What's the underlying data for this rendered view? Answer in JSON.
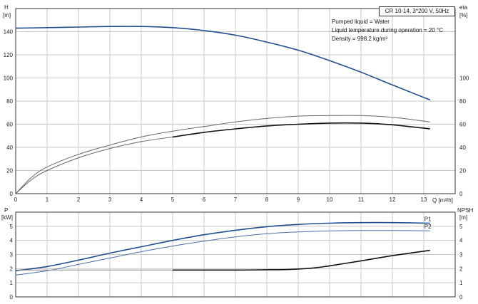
{
  "title": "CR 10-14, 3*200 V, 50Hz",
  "info_lines": [
    "Pumped liquid = Water",
    "Liquid temperature during operation = 20 °C",
    "Density = 998.2 kg/m³"
  ],
  "chart_data": [
    {
      "type": "line",
      "panel": "top",
      "xlabel": "Q [m³/h]",
      "ylabel_left": "H",
      "ylabel_left_unit": "[m]",
      "ylabel_right": "eta",
      "ylabel_right_unit": "[%]",
      "xlim": [
        0,
        14
      ],
      "ylim": [
        0,
        160
      ],
      "x_ticks": [
        0,
        1,
        2,
        3,
        4,
        5,
        6,
        7,
        8,
        9,
        10,
        11,
        12,
        13
      ],
      "y_ticks_left": [
        0,
        20,
        40,
        60,
        80,
        100,
        120,
        140
      ],
      "y_ticks_right": [
        0,
        20,
        40,
        60,
        80,
        100
      ],
      "grid": true,
      "series": [
        {
          "name": "",
          "color": "#1f4e8f",
          "x": [
            0,
            1,
            2,
            3,
            4,
            5,
            6,
            7,
            8,
            9,
            10,
            11,
            12,
            13.2
          ],
          "y": [
            143,
            143.5,
            144,
            144.5,
            144.5,
            143.5,
            141,
            137,
            131,
            124,
            115,
            105,
            94,
            81
          ]
        },
        {
          "name": "",
          "color": "#666666",
          "x": [
            0,
            0.5,
            1,
            2,
            3,
            4,
            5,
            6,
            7,
            8,
            9,
            10,
            11,
            12,
            13.2
          ],
          "y": [
            0,
            14,
            23,
            34,
            42,
            49,
            54,
            58,
            62,
            65,
            67,
            67.5,
            67.5,
            66,
            62
          ]
        },
        {
          "name": "",
          "color": "#666666",
          "x": [
            0,
            0.5,
            1,
            2,
            3,
            4,
            5
          ],
          "y": [
            0,
            12,
            20,
            31,
            39,
            45,
            49
          ]
        },
        {
          "name": "",
          "color": "#111111",
          "x": [
            5,
            6,
            7,
            8,
            9,
            10,
            11,
            12,
            13.2
          ],
          "y": [
            49,
            53,
            56,
            58.5,
            60,
            61,
            61,
            59.5,
            56
          ]
        }
      ]
    },
    {
      "type": "line",
      "panel": "bottom",
      "xlabel": "",
      "ylabel_left": "P",
      "ylabel_left_unit": "[kW]",
      "ylabel_right": "NPSH",
      "ylabel_right_unit": "[m]",
      "xlim": [
        0,
        14
      ],
      "ylim": [
        0,
        6
      ],
      "x_ticks": [],
      "y_ticks_left": [
        0,
        1,
        2,
        3,
        4,
        5
      ],
      "y_ticks_right": [
        0,
        1,
        2,
        3,
        4,
        5
      ],
      "grid": true,
      "series": [
        {
          "name": "P1",
          "color": "#1f4e8f",
          "x": [
            0,
            1,
            2,
            3,
            4,
            5,
            6,
            7,
            8,
            9,
            10,
            11,
            12,
            13.2
          ],
          "y": [
            1.85,
            2.15,
            2.6,
            3.1,
            3.55,
            4.0,
            4.4,
            4.72,
            4.97,
            5.13,
            5.22,
            5.26,
            5.26,
            5.22
          ]
        },
        {
          "name": "P2",
          "color": "#4a6fa8",
          "x": [
            0,
            1,
            2,
            3,
            4,
            5,
            6,
            7,
            8,
            9,
            10,
            11,
            12,
            13.2
          ],
          "y": [
            1.55,
            1.85,
            2.3,
            2.75,
            3.2,
            3.6,
            3.95,
            4.25,
            4.47,
            4.6,
            4.67,
            4.7,
            4.7,
            4.68
          ]
        },
        {
          "name": "",
          "color": "#888888",
          "x": [
            0,
            1,
            2,
            3,
            4,
            5
          ],
          "y": [
            1.9,
            1.9,
            1.9,
            1.9,
            1.9,
            1.9
          ]
        },
        {
          "name": "",
          "color": "#111111",
          "x": [
            5,
            6,
            7,
            8,
            8.8,
            9.5,
            10,
            11,
            12,
            13.2
          ],
          "y": [
            1.9,
            1.9,
            1.9,
            1.92,
            1.95,
            2.05,
            2.2,
            2.55,
            2.92,
            3.3
          ]
        }
      ]
    }
  ]
}
